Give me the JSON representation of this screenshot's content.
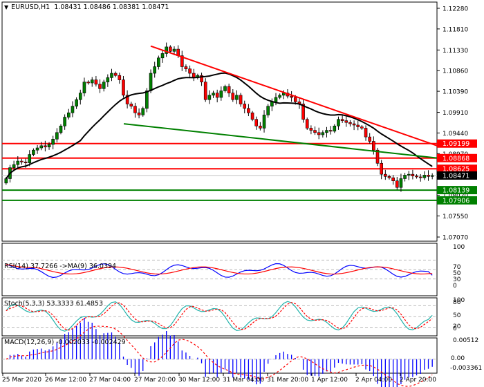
{
  "header": {
    "symbol_label": "EURUSD,H1",
    "ohlc": "1.08431 1.08486 1.08381 1.08471",
    "dropdown_icon": "triangle-down-icon"
  },
  "price_axis": {
    "ticks": [
      "1.12280",
      "1.11810",
      "1.11330",
      "1.10860",
      "1.10390",
      "1.09910",
      "1.09440",
      "1.08970",
      "1.08500",
      "1.08020",
      "1.07550",
      "1.07070"
    ],
    "min": 1.0707,
    "max": 1.1228
  },
  "levels": [
    {
      "name": "resistance-1",
      "price": "1.09199",
      "color": "#ff0000"
    },
    {
      "name": "resistance-2",
      "price": "1.08868",
      "color": "#ff0000"
    },
    {
      "name": "resistance-3",
      "price": "1.08625",
      "color": "#ff0000"
    },
    {
      "name": "current-price",
      "price": "1.08471",
      "color": "#000000"
    },
    {
      "name": "support-1",
      "price": "1.08139",
      "color": "#008000"
    },
    {
      "name": "support-2",
      "price": "1.07906",
      "color": "#008000"
    }
  ],
  "indicators": {
    "rsi": {
      "label": "RSI(14) 37.7266 ->MA(9) 36.0394",
      "levels": [
        "100",
        "70",
        "50",
        "30",
        "0"
      ]
    },
    "stoch": {
      "label": "Stoch(5,3,3) 53.3333 61.4853",
      "levels": [
        "100",
        "80",
        "50",
        "20",
        "0"
      ]
    },
    "macd": {
      "label": "MACD(12,26,9) -0.002033 -0.002429",
      "levels": [
        "0.00512",
        "0.00",
        "-0.003361"
      ]
    }
  },
  "time_axis": [
    "25 Mar 2020",
    "26 Mar 12:00",
    "27 Mar 04:00",
    "27 Mar 20:00",
    "30 Mar 12:00",
    "31 Mar 04:00",
    "31 Mar 20:00",
    "1 Apr 12:00",
    "2 Apr 04:00",
    "2 Apr 20:00"
  ],
  "colors": {
    "bull": "#008000",
    "bear": "#ff0000",
    "ma": "#000000",
    "resistance_trend": "#ff0000",
    "support_trend": "#008000",
    "rsi_line": "#0000ff",
    "rsi_ma": "#ff0000",
    "stoch_main": "#20b2aa",
    "stoch_signal": "#ff0000",
    "macd_hist": "#0000ff",
    "macd_signal": "#ff0000"
  },
  "chart_data": {
    "type": "candlestick",
    "title": "EURUSD,H1",
    "ohlc_last": {
      "open": 1.08431,
      "high": 1.08486,
      "low": 1.08381,
      "close": 1.08471
    },
    "ylim": [
      1.0707,
      1.1228
    ],
    "x_labels": [
      "25 Mar 2020",
      "26 Mar 12:00",
      "27 Mar 04:00",
      "27 Mar 20:00",
      "30 Mar 12:00",
      "31 Mar 04:00",
      "31 Mar 20:00",
      "1 Apr 12:00",
      "2 Apr 04:00",
      "2 Apr 20:00"
    ],
    "horizontal_levels": [
      1.09199,
      1.08868,
      1.08625,
      1.08139,
      1.07906
    ],
    "current_price": 1.08471,
    "trendlines": [
      {
        "name": "descending-resistance",
        "color": "#ff0000",
        "from": {
          "label": "27 Mar 20:00",
          "price": 1.1142
        },
        "to": {
          "label": "end",
          "price": 1.0915
        }
      },
      {
        "name": "descending-support",
        "color": "#008000",
        "from": {
          "label": "27 Mar 04:00",
          "price": 1.0965
        },
        "to": {
          "label": "end",
          "price": 1.0887
        }
      }
    ],
    "close_series": [
      1.084,
      1.0865,
      1.0872,
      1.088,
      1.0878,
      1.0876,
      1.0895,
      1.0905,
      1.091,
      1.0915,
      1.0912,
      1.0918,
      1.093,
      1.0945,
      1.096,
      1.098,
      1.099,
      1.1005,
      1.102,
      1.1035,
      1.106,
      1.1058,
      1.1065,
      1.1055,
      1.1045,
      1.106,
      1.107,
      1.108,
      1.1075,
      1.1065,
      1.103,
      1.101,
      1.1005,
      1.099,
      1.0985,
      1.1,
      1.104,
      1.108,
      1.1095,
      1.1115,
      1.1125,
      1.114,
      1.113,
      1.1135,
      1.112,
      1.1095,
      1.109,
      1.108,
      1.107,
      1.1075,
      1.106,
      1.102,
      1.103,
      1.1035,
      1.1025,
      1.104,
      1.105,
      1.1035,
      1.102,
      1.103,
      1.101,
      1.1,
      1.099,
      1.0975,
      1.096,
      1.0955,
      1.0985,
      1.1005,
      1.1015,
      1.1025,
      1.103,
      1.1035,
      1.1028,
      1.1025,
      1.1015,
      1.101,
      1.0975,
      1.0955,
      1.095,
      1.0945,
      1.094,
      1.0945,
      1.095,
      1.0948,
      1.096,
      1.0975,
      1.0972,
      1.0968,
      1.0965,
      1.0962,
      1.0958,
      1.0955,
      1.0935,
      1.0925,
      1.0905,
      1.0875,
      1.085,
      1.0845,
      1.0842,
      1.0835,
      1.082,
      1.084,
      1.0848,
      1.085,
      1.0846,
      1.0844,
      1.0842,
      1.0848,
      1.0845,
      1.0847
    ],
    "ma_label": "MA",
    "subplots": [
      {
        "name": "RSI(14)",
        "value": 37.7266,
        "ma_name": "MA(9)",
        "ma_value": 36.0394,
        "levels": [
          30,
          50,
          70
        ],
        "ylim": [
          0,
          100
        ]
      },
      {
        "name": "Stoch(5,3,3)",
        "main": 53.3333,
        "signal": 61.4853,
        "levels": [
          20,
          50,
          80
        ],
        "ylim": [
          0,
          100
        ]
      },
      {
        "name": "MACD(12,26,9)",
        "main": -0.002033,
        "signal": -0.002429,
        "ylim": [
          -0.003361,
          0.00512
        ]
      }
    ]
  }
}
